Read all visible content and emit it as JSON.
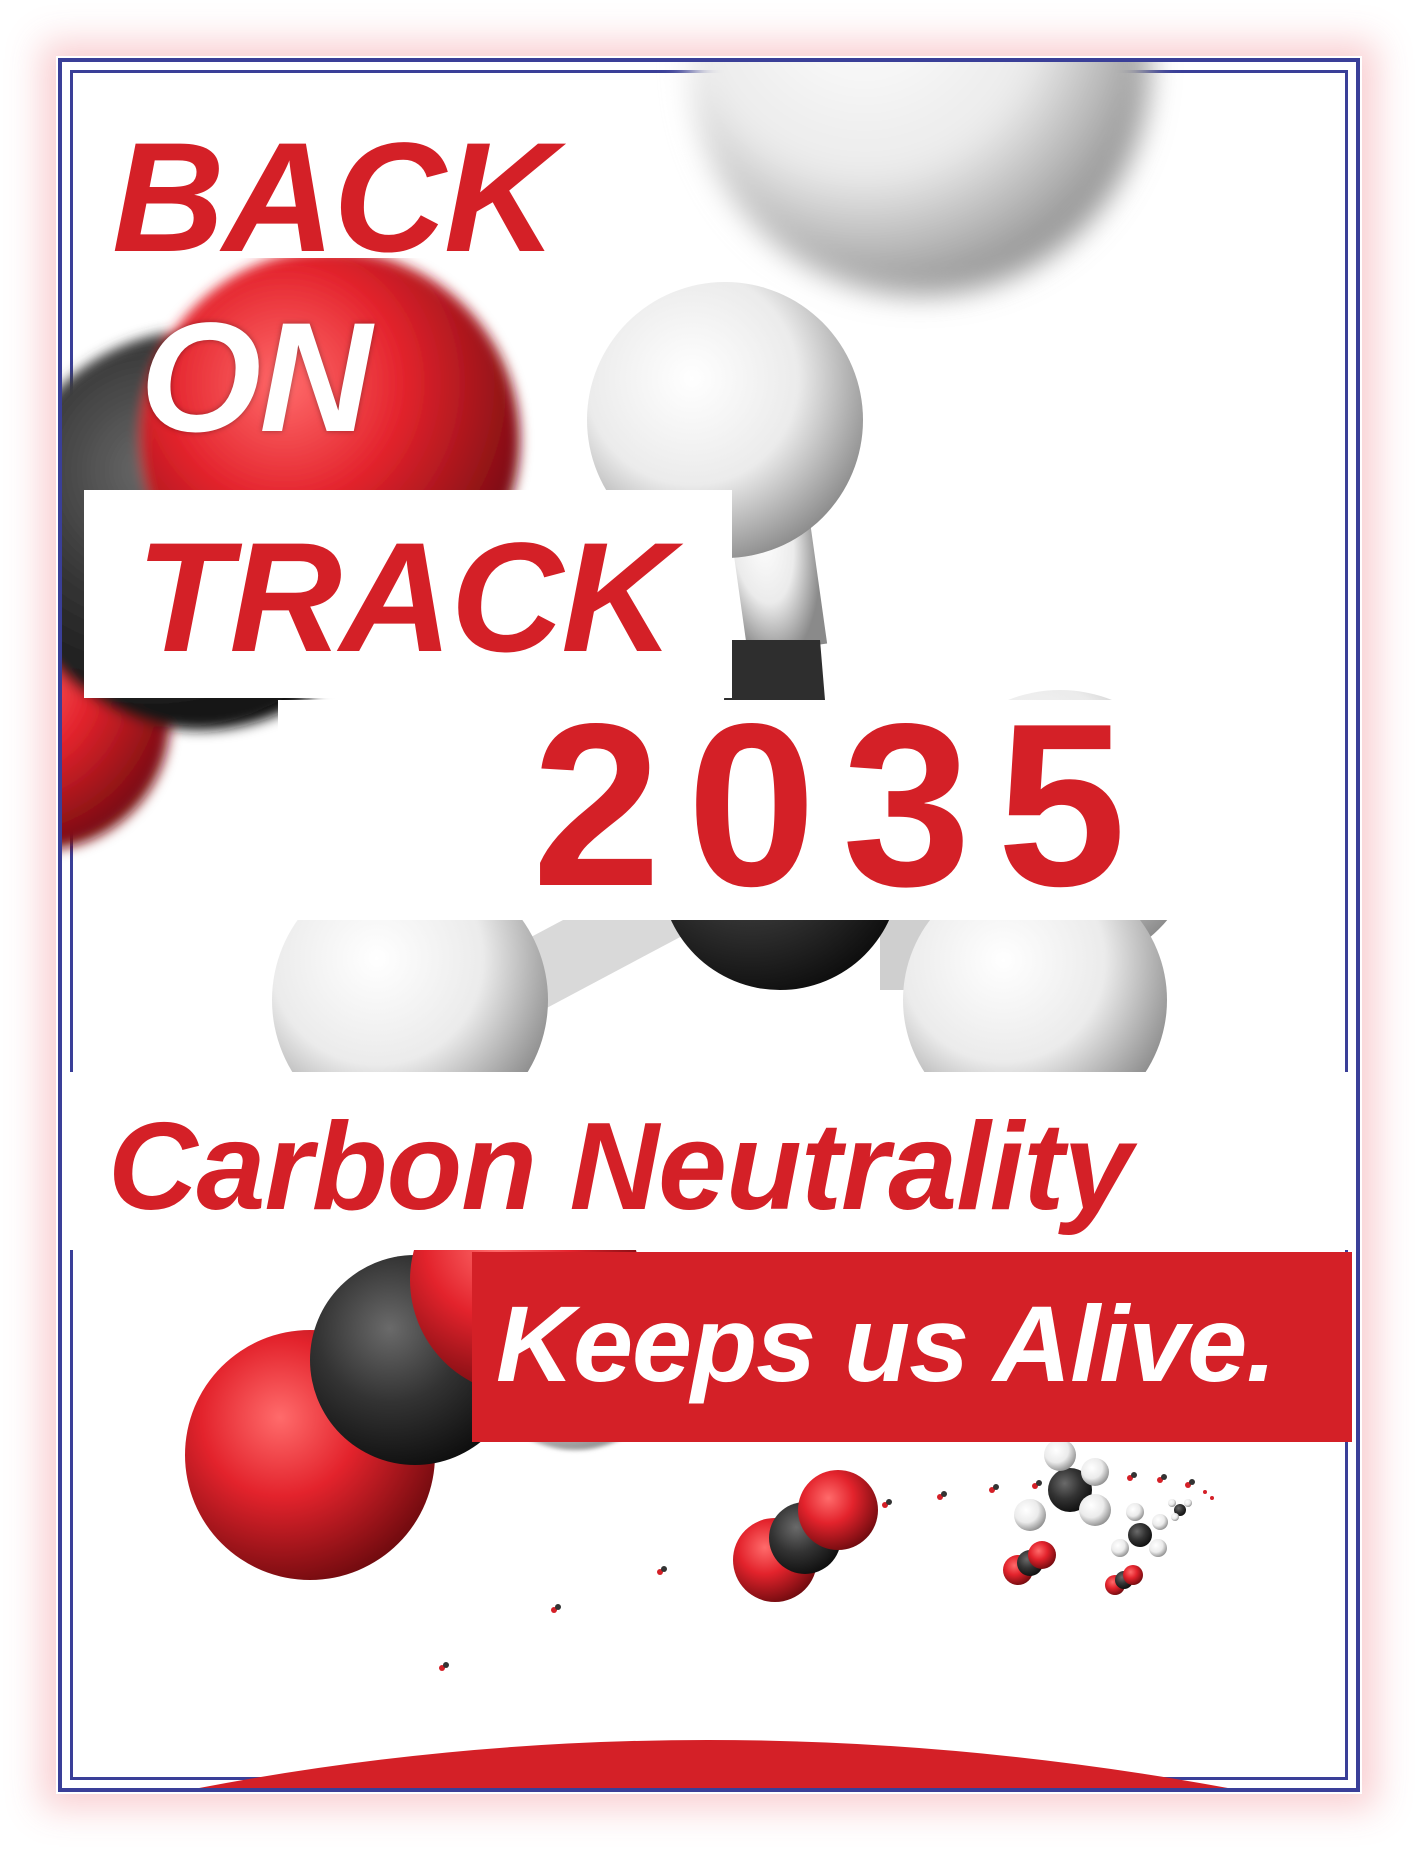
{
  "headline": {
    "line1": "BACK",
    "line2": "ON",
    "line3": "TRACK",
    "year": "2035"
  },
  "tagline": {
    "main": "Carbon Neutrality",
    "sub": "Keeps us Alive."
  },
  "colors": {
    "accent_red": "#d42027",
    "frame_blue": "#3a3f98",
    "background": "#ffffff",
    "atom_carbon": "#2b2b2b",
    "atom_hydrogen": "#f2f2f2"
  },
  "imagery": {
    "subject": "molecule-models",
    "molecules": [
      "carbon-dioxide",
      "methane"
    ]
  }
}
